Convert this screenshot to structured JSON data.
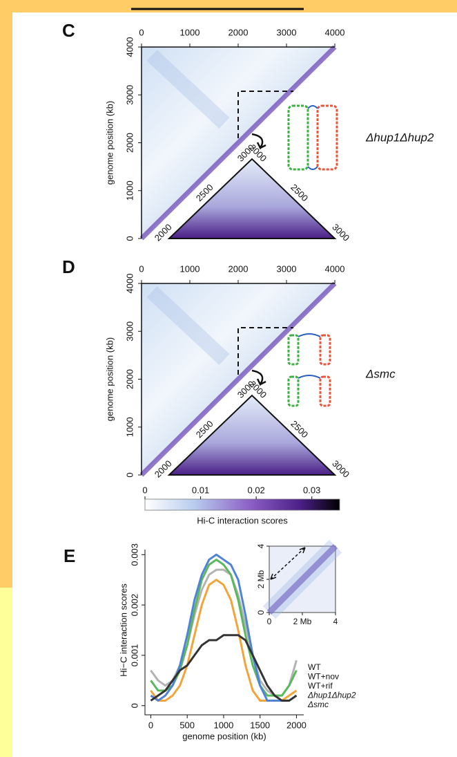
{
  "panels": [
    {
      "label": "C",
      "xlim": [
        0,
        4000
      ],
      "ylim": [
        0,
        4000
      ],
      "xticks": [
        0,
        1000,
        2000,
        3000,
        4000
      ],
      "yticks": [
        0,
        1000,
        2000,
        3000,
        4000
      ],
      "ylabel": "genome position (kb)",
      "zoom_lim": [
        2000,
        3000
      ],
      "zoom_left_ticks": [
        2000,
        2500,
        3000
      ],
      "zoom_right_ticks": [
        2000,
        2500,
        3000
      ],
      "strain": "Δhup1Δhup2"
    },
    {
      "label": "D",
      "xlim": [
        0,
        4000
      ],
      "ylim": [
        0,
        4000
      ],
      "xticks": [
        0,
        1000,
        2000,
        3000,
        4000
      ],
      "yticks": [
        0,
        1000,
        2000,
        3000,
        4000
      ],
      "ylabel": "genome position (kb)",
      "zoom_lim": [
        2000,
        3000
      ],
      "zoom_left_ticks": [
        2000,
        2500,
        3000
      ],
      "zoom_right_ticks": [
        2000,
        2500,
        3000
      ],
      "strain": "Δsmc"
    }
  ],
  "colorbar": {
    "lim": [
      0,
      0.035
    ],
    "ticks": [
      0,
      0.01,
      0.02,
      0.03
    ],
    "label": "Hi-C interaction scores"
  },
  "chart_data": {
    "type": "line",
    "label": "E",
    "ylabel": "Hi−C interaction scores",
    "xlabel": "genome position (kb)",
    "x": [
      0,
      100,
      200,
      300,
      400,
      500,
      600,
      700,
      800,
      900,
      1000,
      1100,
      1200,
      1300,
      1400,
      1500,
      1600,
      1700,
      1800,
      1900,
      2000
    ],
    "xlim": [
      -80,
      2100
    ],
    "ylim": [
      -0.0001,
      0.0031
    ],
    "xticks": [
      0,
      500,
      1000,
      1500,
      2000
    ],
    "yticks": [
      0,
      0.001,
      0.002,
      0.003
    ],
    "series": [
      {
        "name": "WT",
        "color": "#b3b3b3",
        "values": [
          0.0007,
          0.0005,
          0.0004,
          0.0005,
          0.0008,
          0.0012,
          0.0018,
          0.0023,
          0.0026,
          0.0027,
          0.0027,
          0.0026,
          0.0022,
          0.0016,
          0.001,
          0.0005,
          0.0003,
          0.0002,
          0.0002,
          0.0004,
          0.0009
        ]
      },
      {
        "name": "WT+nov",
        "color": "#5cb85c",
        "values": [
          0.0005,
          0.0003,
          0.0003,
          0.0004,
          0.0007,
          0.0012,
          0.0019,
          0.0025,
          0.0028,
          0.0029,
          0.0028,
          0.0026,
          0.0021,
          0.0014,
          0.0008,
          0.0004,
          0.0002,
          0.0002,
          0.0002,
          0.0004,
          0.0007
        ]
      },
      {
        "name": "WT+rif",
        "color": "#f2a43a",
        "values": [
          0.0003,
          0.0001,
          0.0001,
          0.0002,
          0.0004,
          0.0008,
          0.0014,
          0.002,
          0.0024,
          0.0025,
          0.0024,
          0.0021,
          0.0015,
          0.0008,
          0.0003,
          0.0001,
          0.0001,
          0.0001,
          0.0001,
          0.0002,
          0.0003
        ]
      },
      {
        "name": "Δhup1Δhup2",
        "color": "#4f83d6",
        "values": [
          0.0002,
          0.0001,
          0.0002,
          0.0004,
          0.0008,
          0.0014,
          0.0021,
          0.0026,
          0.0029,
          0.003,
          0.0029,
          0.0028,
          0.0025,
          0.0018,
          0.001,
          0.0004,
          0.0001,
          0.0001,
          0.0001,
          0.0001,
          0.0002
        ]
      },
      {
        "name": "Δsmc",
        "color": "#333333",
        "values": [
          0.0001,
          0.0002,
          0.0003,
          0.0005,
          0.0007,
          0.0008,
          0.001,
          0.0012,
          0.0013,
          0.0013,
          0.0014,
          0.0014,
          0.0014,
          0.0013,
          0.001,
          0.0007,
          0.0004,
          0.0002,
          0.0001,
          0.0001,
          0.0002
        ]
      }
    ],
    "inset": {
      "xlim": [
        0,
        4
      ],
      "ylim": [
        0,
        4
      ],
      "xticks": [
        0,
        {
          "value": 2,
          "label": "2 Mb"
        },
        4
      ],
      "yticks": [
        0,
        {
          "value": 2,
          "label": "2 Mb"
        },
        4
      ]
    }
  }
}
